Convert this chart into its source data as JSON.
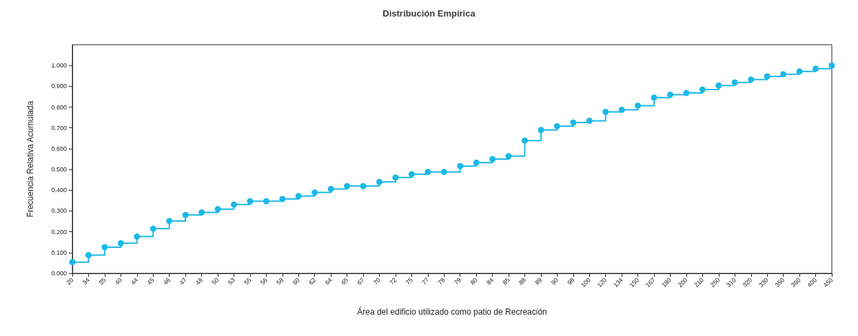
{
  "chart_data": {
    "type": "step",
    "title": "Distribución Empírica",
    "xlabel": "Área del edificio utilizado como patio de Recreación",
    "ylabel": "Frecuencia Relativa Acumulada",
    "categories": [
      "20",
      "34",
      "35",
      "40",
      "44",
      "45",
      "46",
      "47",
      "48",
      "50",
      "53",
      "55",
      "56",
      "58",
      "60",
      "62",
      "64",
      "65",
      "67",
      "70",
      "72",
      "75",
      "77",
      "78",
      "79",
      "80",
      "84",
      "85",
      "88",
      "89",
      "90",
      "98",
      "100",
      "120",
      "134",
      "150",
      "167",
      "180",
      "200",
      "210",
      "250",
      "310",
      "320",
      "330",
      "350",
      "360",
      "400",
      "450"
    ],
    "series": [
      {
        "color": "#1ab8e8",
        "values": [
          0.054,
          0.088,
          0.126,
          0.145,
          0.177,
          0.215,
          0.252,
          0.281,
          0.293,
          0.309,
          0.331,
          0.347,
          0.347,
          0.358,
          0.372,
          0.389,
          0.406,
          0.42,
          0.42,
          0.44,
          0.461,
          0.477,
          0.488,
          0.488,
          0.516,
          0.533,
          0.55,
          0.564,
          0.639,
          0.69,
          0.708,
          0.726,
          0.734,
          0.777,
          0.787,
          0.807,
          0.846,
          0.86,
          0.868,
          0.885,
          0.904,
          0.919,
          0.933,
          0.948,
          0.958,
          0.972,
          0.985,
          1.0
        ]
      }
    ],
    "ylim": [
      0,
      1.1
    ],
    "yticks": [
      {
        "value": 0,
        "label": "0.000"
      },
      {
        "value": 0.1,
        "label": "0.100"
      },
      {
        "value": 0.2,
        "label": "0.200"
      },
      {
        "value": 0.3,
        "label": "0.300"
      },
      {
        "value": 0.4,
        "label": "0.400"
      },
      {
        "value": 0.5,
        "label": "0.500"
      },
      {
        "value": 0.6,
        "label": "0.600"
      },
      {
        "value": 0.7,
        "label": "0.700"
      },
      {
        "value": 0.8,
        "label": "0.800"
      },
      {
        "value": 0.9,
        "label": "0.900"
      },
      {
        "value": 1,
        "label": "1.000"
      }
    ],
    "marker": "circle",
    "grid": false
  }
}
